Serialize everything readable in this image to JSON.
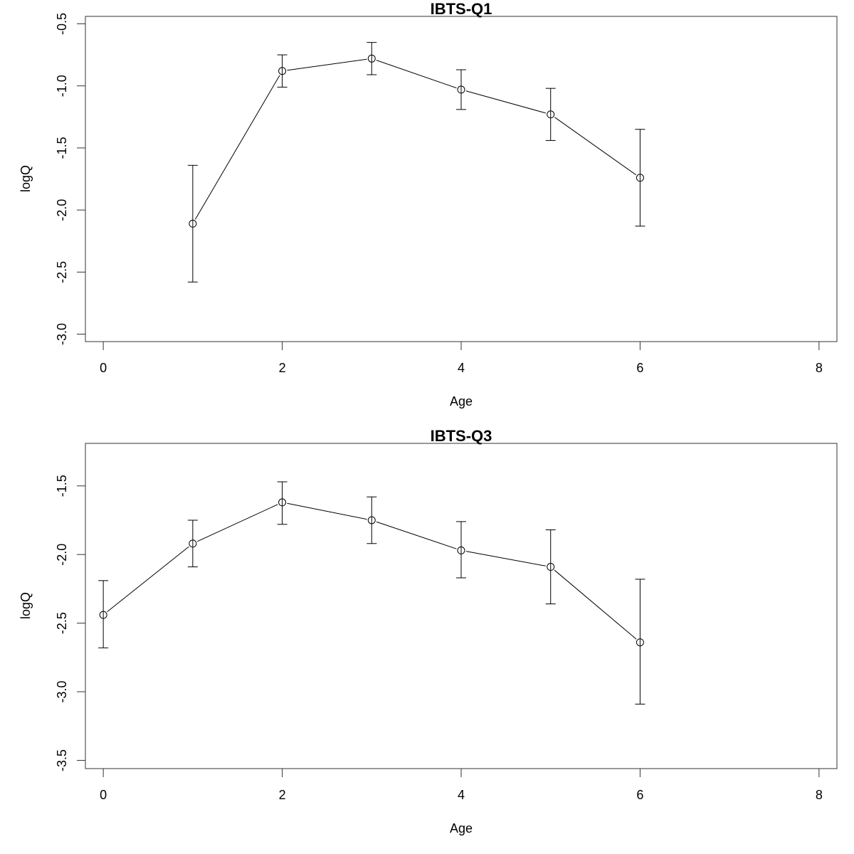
{
  "chart_data": [
    {
      "type": "line",
      "title": "IBTS-Q1",
      "xlabel": "Age",
      "ylabel": "logQ",
      "xlim": [
        -0.2,
        8.2
      ],
      "ylim": [
        -3.06,
        -0.44
      ],
      "xticks": [
        0,
        2,
        4,
        6,
        8
      ],
      "yticks": [
        -3.0,
        -2.5,
        -2.0,
        -1.5,
        -1.0,
        -0.5
      ],
      "ytick_labels": [
        "-3.0",
        "-2.5",
        "-2.0",
        "-1.5",
        "-1.0",
        "-0.5"
      ],
      "grid": false,
      "x": [
        1,
        2,
        3,
        4,
        5,
        6
      ],
      "y": [
        -2.11,
        -0.88,
        -0.78,
        -1.03,
        -1.23,
        -1.74
      ],
      "lower": [
        -2.58,
        -1.01,
        -0.91,
        -1.19,
        -1.44,
        -2.13
      ],
      "upper": [
        -1.64,
        -0.75,
        -0.65,
        -0.87,
        -1.02,
        -1.35
      ]
    },
    {
      "type": "line",
      "title": "IBTS-Q3",
      "xlabel": "Age",
      "ylabel": "logQ",
      "xlim": [
        -0.2,
        8.2
      ],
      "ylim": [
        -3.56,
        -1.19
      ],
      "xticks": [
        0,
        2,
        4,
        6,
        8
      ],
      "yticks": [
        -3.5,
        -3.0,
        -2.5,
        -2.0,
        -1.5
      ],
      "ytick_labels": [
        "-3.5",
        "-3.0",
        "-2.5",
        "-2.0",
        "-1.5"
      ],
      "grid": false,
      "x": [
        0,
        1,
        2,
        3,
        4,
        5,
        6
      ],
      "y": [
        -2.44,
        -1.92,
        -1.62,
        -1.75,
        -1.97,
        -2.09,
        -2.64
      ],
      "lower": [
        -2.68,
        -2.09,
        -1.78,
        -1.92,
        -2.17,
        -2.36,
        -3.09
      ],
      "upper": [
        -2.19,
        -1.75,
        -1.47,
        -1.58,
        -1.76,
        -1.82,
        -2.18
      ]
    }
  ]
}
